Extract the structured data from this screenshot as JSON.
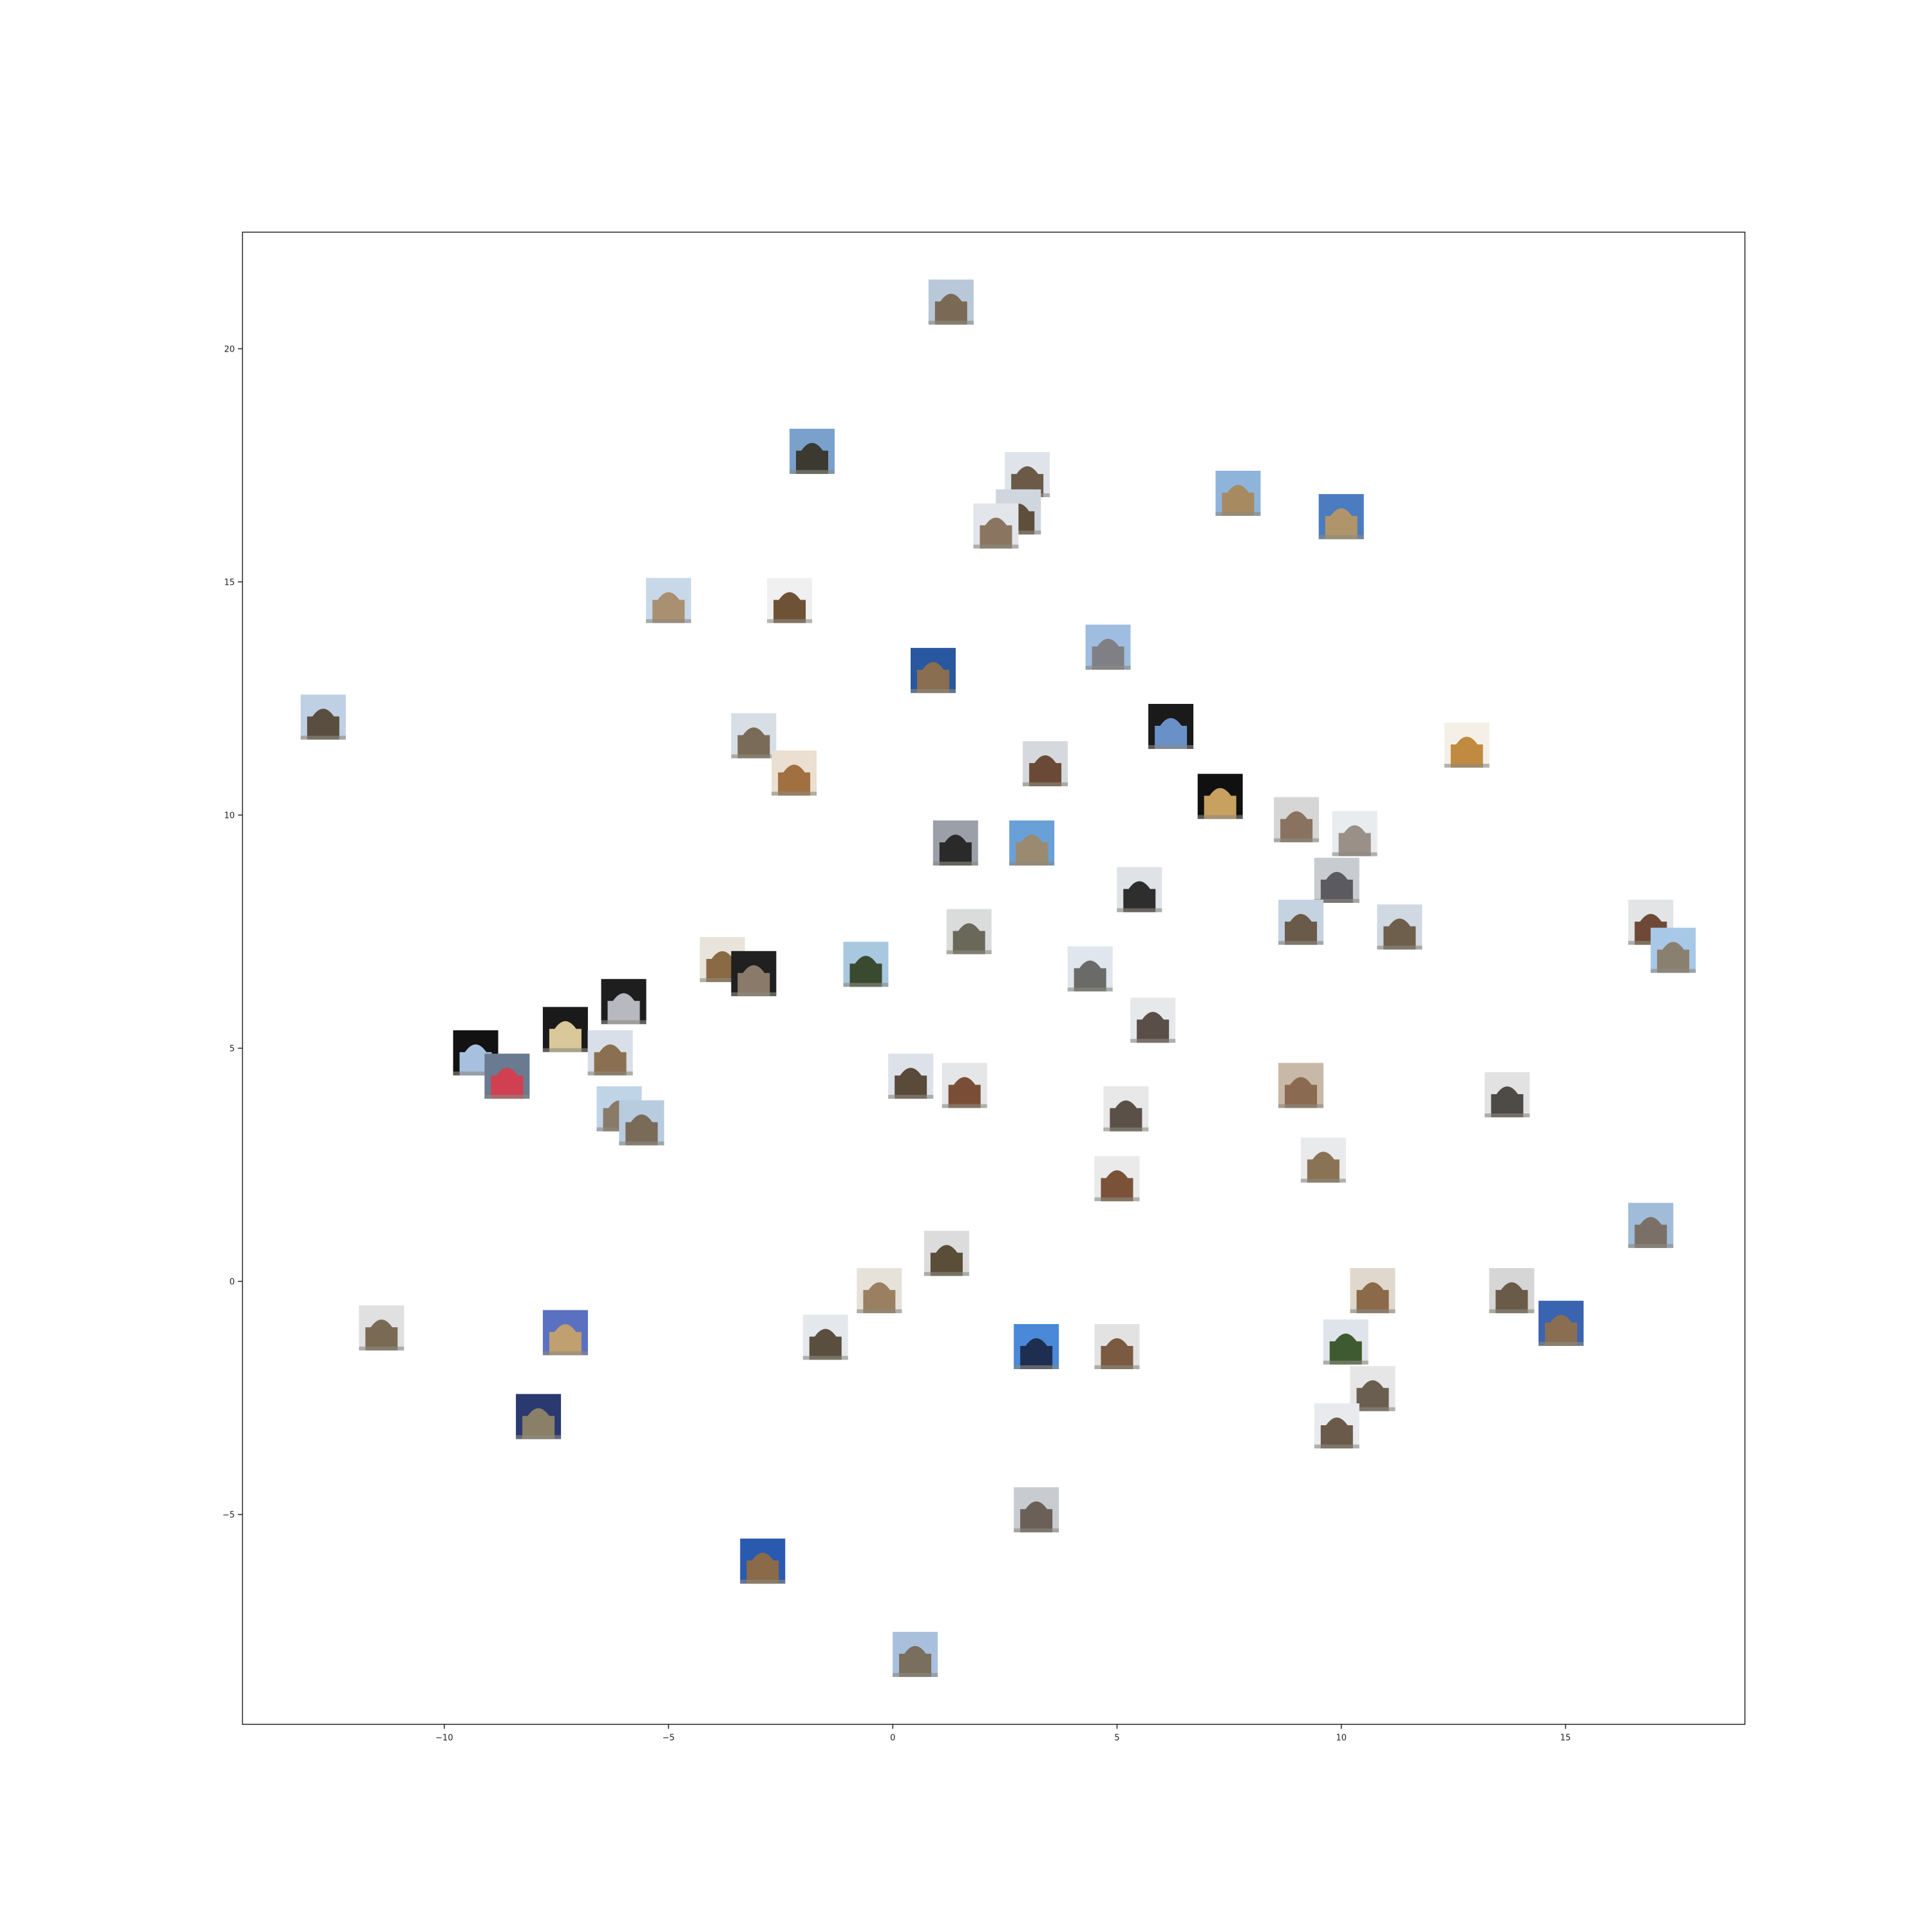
{
  "chart_data": {
    "type": "scatter",
    "title": "",
    "xlabel": "",
    "ylabel": "",
    "xlim": [
      -14.5,
      19
    ],
    "ylim": [
      -9.5,
      22.5
    ],
    "grid": false,
    "legend": "none",
    "marker": "image-thumbnail",
    "x_ticks": [
      {
        "value": -10,
        "label": "−10"
      },
      {
        "value": -5,
        "label": "−5"
      },
      {
        "value": 0,
        "label": "0"
      },
      {
        "value": 5,
        "label": "5"
      },
      {
        "value": 10,
        "label": "10"
      },
      {
        "value": 15,
        "label": "15"
      }
    ],
    "y_ticks": [
      {
        "value": -5,
        "label": "−5"
      },
      {
        "value": 0,
        "label": "0"
      },
      {
        "value": 5,
        "label": "5"
      },
      {
        "value": 10,
        "label": "10"
      },
      {
        "value": 15,
        "label": "15"
      },
      {
        "value": 20,
        "label": "20"
      }
    ],
    "points": [
      {
        "x": 1.3,
        "y": 21.0,
        "sky": "#b9c8d8",
        "bld": "#7a6a55"
      },
      {
        "x": -1.8,
        "y": 17.8,
        "sky": "#7aa0cc",
        "bld": "#3a3a30"
      },
      {
        "x": 3.0,
        "y": 17.3,
        "sky": "#dfe4ea",
        "bld": "#6b5a48"
      },
      {
        "x": 2.8,
        "y": 16.5,
        "sky": "#cfd6de",
        "bld": "#5e4e3c"
      },
      {
        "x": 2.3,
        "y": 16.2,
        "sky": "#e2e6ea",
        "bld": "#8a7560"
      },
      {
        "x": 7.7,
        "y": 16.9,
        "sky": "#8fb4dc",
        "bld": "#a88a60"
      },
      {
        "x": 10.0,
        "y": 16.4,
        "sky": "#4b7bc0",
        "bld": "#b0956a"
      },
      {
        "x": -5.0,
        "y": 14.6,
        "sky": "#c8d8e8",
        "bld": "#a89070"
      },
      {
        "x": -2.3,
        "y": 14.6,
        "sky": "#f0f0f0",
        "bld": "#6e5236"
      },
      {
        "x": 4.8,
        "y": 13.6,
        "sky": "#9fbde0",
        "bld": "#7f7f85"
      },
      {
        "x": 0.9,
        "y": 13.1,
        "sky": "#2a58a0",
        "bld": "#8a6e50"
      },
      {
        "x": -12.7,
        "y": 12.1,
        "sky": "#c0d0e4",
        "bld": "#5a4e40"
      },
      {
        "x": -3.1,
        "y": 11.7,
        "sky": "#d8dee6",
        "bld": "#7a6a58"
      },
      {
        "x": -2.2,
        "y": 10.9,
        "sky": "#eadfd0",
        "bld": "#a07040"
      },
      {
        "x": 3.4,
        "y": 11.1,
        "sky": "#d5d8dc",
        "bld": "#6a4a36"
      },
      {
        "x": 6.2,
        "y": 11.9,
        "sky": "#1a1a1a",
        "bld": "#6a90c8"
      },
      {
        "x": 7.3,
        "y": 10.4,
        "sky": "#101010",
        "bld": "#c8a060"
      },
      {
        "x": 12.8,
        "y": 11.5,
        "sky": "#f4f0e8",
        "bld": "#c08a40"
      },
      {
        "x": 1.4,
        "y": 9.4,
        "sky": "#9ba0a8",
        "bld": "#2a2a2a"
      },
      {
        "x": 3.1,
        "y": 9.4,
        "sky": "#6aa0d8",
        "bld": "#9a8a70"
      },
      {
        "x": 5.5,
        "y": 8.4,
        "sky": "#dfe3e8",
        "bld": "#2e2e2e"
      },
      {
        "x": 9.0,
        "y": 9.9,
        "sky": "#d6d6d6",
        "bld": "#8a7260"
      },
      {
        "x": 10.3,
        "y": 9.6,
        "sky": "#e8ecef",
        "bld": "#9a9088"
      },
      {
        "x": 9.9,
        "y": 8.6,
        "sky": "#c8ccd0",
        "bld": "#5a5a60"
      },
      {
        "x": 9.1,
        "y": 7.7,
        "sky": "#c5d2e0",
        "bld": "#6a5a4a"
      },
      {
        "x": 11.3,
        "y": 7.6,
        "sky": "#d0d8e2",
        "bld": "#6e5e4c"
      },
      {
        "x": 16.9,
        "y": 7.7,
        "sky": "#e2e4e6",
        "bld": "#6e4a36"
      },
      {
        "x": 17.4,
        "y": 7.1,
        "sky": "#a8c8e8",
        "bld": "#8a8070"
      },
      {
        "x": -3.8,
        "y": 6.9,
        "sky": "#e8e4dc",
        "bld": "#8a6a44"
      },
      {
        "x": -3.1,
        "y": 6.6,
        "sky": "#202020",
        "bld": "#8a7a6a"
      },
      {
        "x": -0.6,
        "y": 6.8,
        "sky": "#a8c8e0",
        "bld": "#3a4a30"
      },
      {
        "x": 1.7,
        "y": 7.5,
        "sky": "#dadcdc",
        "bld": "#6a6858"
      },
      {
        "x": 4.4,
        "y": 6.7,
        "sky": "#dfe6ee",
        "bld": "#6a6a68"
      },
      {
        "x": 5.8,
        "y": 5.6,
        "sky": "#e6e8ea",
        "bld": "#5a4e48"
      },
      {
        "x": -6.0,
        "y": 6.0,
        "sky": "#1e1e1e",
        "bld": "#b8b8c0"
      },
      {
        "x": -7.3,
        "y": 5.4,
        "sky": "#1a1a1a",
        "bld": "#d8c89a"
      },
      {
        "x": -6.3,
        "y": 4.9,
        "sky": "#d8dfe8",
        "bld": "#8a7050"
      },
      {
        "x": -9.3,
        "y": 4.9,
        "sky": "#121212",
        "bld": "#a8c0e0"
      },
      {
        "x": -8.6,
        "y": 4.4,
        "sky": "#6a7a90",
        "bld": "#d04050"
      },
      {
        "x": -6.1,
        "y": 3.7,
        "sky": "#c0d4e8",
        "bld": "#8a7a68"
      },
      {
        "x": -5.6,
        "y": 3.4,
        "sky": "#b8cce0",
        "bld": "#7a6a58"
      },
      {
        "x": 0.4,
        "y": 4.4,
        "sky": "#dde2ea",
        "bld": "#5a4a3a"
      },
      {
        "x": 1.6,
        "y": 4.2,
        "sky": "#e4e6e8",
        "bld": "#7a4e36"
      },
      {
        "x": 5.2,
        "y": 3.7,
        "sky": "#e8e8e8",
        "bld": "#5a5048"
      },
      {
        "x": 9.1,
        "y": 4.2,
        "sky": "#c8b8a8",
        "bld": "#8a6a50"
      },
      {
        "x": 13.7,
        "y": 4.0,
        "sky": "#e2e2e2",
        "bld": "#4e4a46"
      },
      {
        "x": 9.6,
        "y": 2.6,
        "sky": "#e8eaec",
        "bld": "#8a7254"
      },
      {
        "x": 5.0,
        "y": 2.2,
        "sky": "#eaeaea",
        "bld": "#7a5238"
      },
      {
        "x": 16.9,
        "y": 1.2,
        "sky": "#a0bcd8",
        "bld": "#7a7068"
      },
      {
        "x": 1.2,
        "y": 0.6,
        "sky": "#dcdcdc",
        "bld": "#5a4e38"
      },
      {
        "x": -0.3,
        "y": -0.2,
        "sky": "#e6e2da",
        "bld": "#9a8060"
      },
      {
        "x": -11.4,
        "y": -1.0,
        "sky": "#e0e0e0",
        "bld": "#7a6a54"
      },
      {
        "x": -7.3,
        "y": -1.1,
        "sky": "#5a70c0",
        "bld": "#c0a070"
      },
      {
        "x": -1.5,
        "y": -1.2,
        "sky": "#e4e8ec",
        "bld": "#5a4e3e"
      },
      {
        "x": 3.2,
        "y": -1.4,
        "sky": "#4a88d8",
        "bld": "#1e2e50"
      },
      {
        "x": 5.0,
        "y": -1.4,
        "sky": "#e2e2e2",
        "bld": "#7a5a40"
      },
      {
        "x": 10.7,
        "y": -0.2,
        "sky": "#e0d8cc",
        "bld": "#8a6a48"
      },
      {
        "x": 13.8,
        "y": -0.2,
        "sky": "#d6d6d6",
        "bld": "#6a5a48"
      },
      {
        "x": 14.9,
        "y": -0.9,
        "sky": "#3a64b0",
        "bld": "#8a6e52"
      },
      {
        "x": 10.1,
        "y": -1.3,
        "sky": "#dfe4ea",
        "bld": "#3e5a30"
      },
      {
        "x": 10.7,
        "y": -2.3,
        "sky": "#e6e6e6",
        "bld": "#6a5e50"
      },
      {
        "x": 9.9,
        "y": -3.1,
        "sky": "#e8eaee",
        "bld": "#6a5a4a"
      },
      {
        "x": -7.9,
        "y": -2.9,
        "sky": "#2a3a70",
        "bld": "#8a8068"
      },
      {
        "x": 3.2,
        "y": -4.9,
        "sky": "#c8ccd0",
        "bld": "#6a6058"
      },
      {
        "x": -2.9,
        "y": -6.0,
        "sky": "#2a5ab0",
        "bld": "#8a6a48"
      },
      {
        "x": 0.5,
        "y": -8.0,
        "sky": "#a8c0dc",
        "bld": "#7a6e5e"
      }
    ]
  }
}
